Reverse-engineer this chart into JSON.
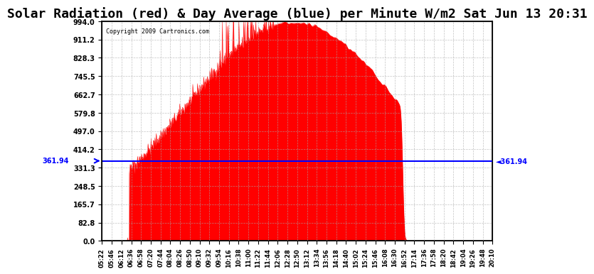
{
  "title": "Solar Radiation (red) & Day Average (blue) per Minute W/m2 Sat Jun 13 20:31",
  "copyright": "Copyright 2009 Cartronics.com",
  "avg_line_y": 361.94,
  "avg_label": "361.94",
  "y_min": 0.0,
  "y_max": 994.0,
  "y_ticks": [
    0.0,
    82.8,
    165.7,
    248.5,
    331.3,
    414.2,
    497.0,
    579.8,
    662.7,
    745.5,
    828.3,
    911.2,
    994.0
  ],
  "x_tick_labels": [
    "05:22",
    "05:46",
    "06:12",
    "06:36",
    "06:58",
    "07:20",
    "07:44",
    "08:04",
    "08:26",
    "08:50",
    "09:10",
    "09:32",
    "09:54",
    "10:16",
    "10:38",
    "11:00",
    "11:22",
    "11:44",
    "12:06",
    "12:28",
    "12:50",
    "13:12",
    "13:34",
    "13:56",
    "14:18",
    "14:40",
    "15:02",
    "15:24",
    "15:46",
    "16:08",
    "16:30",
    "16:52",
    "17:14",
    "17:36",
    "17:58",
    "18:20",
    "18:42",
    "19:04",
    "19:26",
    "19:48",
    "20:10"
  ],
  "background_color": "#ffffff",
  "fill_color": "#ff0000",
  "line_color": "#0000ff",
  "grid_color": "#aaaaaa",
  "title_fontsize": 13,
  "avg_line_color": "#0000ff"
}
